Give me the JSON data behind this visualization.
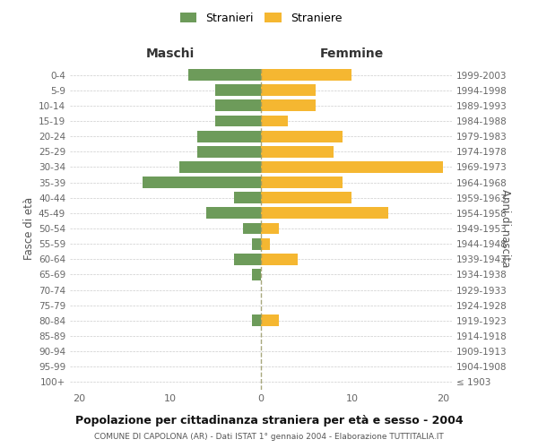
{
  "age_groups": [
    "100+",
    "95-99",
    "90-94",
    "85-89",
    "80-84",
    "75-79",
    "70-74",
    "65-69",
    "60-64",
    "55-59",
    "50-54",
    "45-49",
    "40-44",
    "35-39",
    "30-34",
    "25-29",
    "20-24",
    "15-19",
    "10-14",
    "5-9",
    "0-4"
  ],
  "birth_years": [
    "≤ 1903",
    "1904-1908",
    "1909-1913",
    "1914-1918",
    "1919-1923",
    "1924-1928",
    "1929-1933",
    "1934-1938",
    "1939-1943",
    "1944-1948",
    "1949-1953",
    "1954-1958",
    "1959-1963",
    "1964-1968",
    "1969-1973",
    "1974-1978",
    "1979-1983",
    "1984-1988",
    "1989-1993",
    "1994-1998",
    "1999-2003"
  ],
  "maschi": [
    0,
    0,
    0,
    0,
    1,
    0,
    0,
    1,
    3,
    1,
    2,
    6,
    3,
    13,
    9,
    7,
    7,
    5,
    5,
    5,
    8
  ],
  "femmine": [
    0,
    0,
    0,
    0,
    2,
    0,
    0,
    0,
    4,
    1,
    2,
    14,
    10,
    9,
    20,
    8,
    9,
    3,
    6,
    6,
    10
  ],
  "maschi_color": "#6d9b5a",
  "femmine_color": "#f5b731",
  "bg_color": "#ffffff",
  "grid_color": "#cccccc",
  "vline_color": "#999966",
  "title": "Popolazione per cittadinanza straniera per età e sesso - 2004",
  "subtitle": "COMUNE DI CAPOLONA (AR) - Dati ISTAT 1° gennaio 2004 - Elaborazione TUTTITALIA.IT",
  "header_left": "Maschi",
  "header_right": "Femmine",
  "ylabel_left": "Fasce di età",
  "ylabel_right": "Anni di nascita",
  "legend_maschi": "Stranieri",
  "legend_femmine": "Straniere",
  "xlim": [
    -21,
    21
  ],
  "xticks": [
    -20,
    -10,
    0,
    10,
    20
  ]
}
